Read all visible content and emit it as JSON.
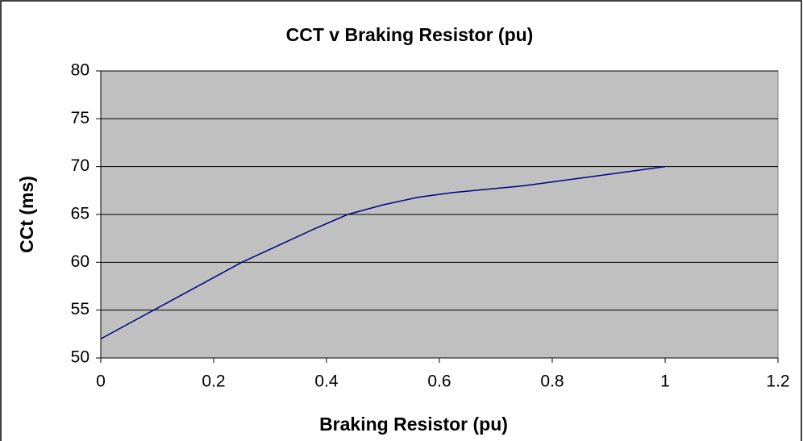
{
  "chart_data": {
    "type": "line",
    "title": "CCT v Braking Resistor (pu)",
    "x_label": "Braking Resistor (pu)",
    "y_label": "CCt (ms)",
    "x": [
      0,
      0.125,
      0.25,
      0.375,
      0.4375,
      0.5,
      0.5625,
      0.625,
      0.75,
      1
    ],
    "series": [
      {
        "name": "CCt",
        "color": "#000080",
        "values": [
          52,
          56,
          60,
          63.4,
          65,
          66,
          66.8,
          67.3,
          68,
          70
        ]
      }
    ],
    "xlim": [
      0,
      1.2
    ],
    "xticks": [
      0,
      0.2,
      0.4,
      0.6,
      0.8,
      1,
      1.2
    ],
    "ylim": [
      50,
      80
    ],
    "yticks": [
      50,
      55,
      60,
      65,
      70,
      75,
      80
    ],
    "grid": true,
    "plot_background": "#c0c0c0"
  }
}
